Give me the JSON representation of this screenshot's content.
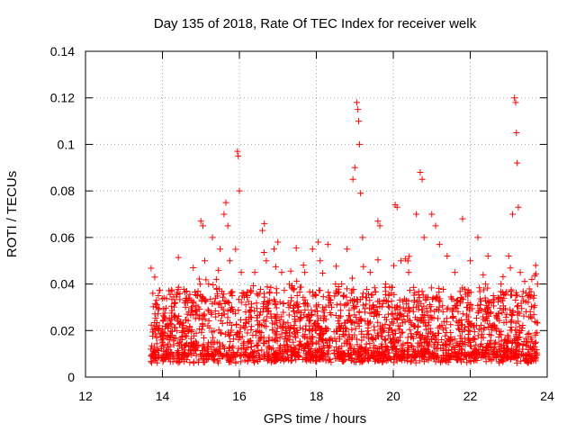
{
  "chart_data": {
    "type": "scatter",
    "title": "Day 135 of 2018, Rate Of TEC Index for receiver welk",
    "xlabel": "GPS time / hours",
    "ylabel": "ROTI / TECUs",
    "xlim": [
      12,
      24
    ],
    "ylim": [
      0,
      0.14
    ],
    "xticks": [
      12,
      14,
      16,
      18,
      20,
      22,
      24
    ],
    "yticks": [
      0,
      0.02,
      0.04,
      0.06,
      0.08,
      0.1,
      0.12,
      0.14
    ],
    "xtick_labels": [
      "12",
      "14",
      "16",
      "18",
      "20",
      "22",
      "24"
    ],
    "ytick_labels": [
      "0",
      "0.02",
      "0.04",
      "0.06",
      "0.08",
      "0.1",
      "0.12",
      "0.14"
    ],
    "grid": true,
    "marker": "+",
    "color": "#ff0000",
    "series": [
      {
        "name": "ROTI",
        "points": [
          [
            13.7,
            0.012
          ],
          [
            13.75,
            0.036
          ],
          [
            13.8,
            0.043
          ],
          [
            13.85,
            0.03
          ],
          [
            13.9,
            0.02
          ],
          [
            14.0,
            0.015
          ],
          [
            14.1,
            0.022
          ],
          [
            14.2,
            0.018
          ],
          [
            14.4,
            0.025
          ],
          [
            14.6,
            0.03
          ],
          [
            14.8,
            0.047
          ],
          [
            14.9,
            0.035
          ],
          [
            15.0,
            0.067
          ],
          [
            15.05,
            0.065
          ],
          [
            15.1,
            0.05
          ],
          [
            15.2,
            0.04
          ],
          [
            15.3,
            0.06
          ],
          [
            15.4,
            0.042
          ],
          [
            15.5,
            0.055
          ],
          [
            15.6,
            0.07
          ],
          [
            15.65,
            0.075
          ],
          [
            15.7,
            0.065
          ],
          [
            15.75,
            0.05
          ],
          [
            15.8,
            0.03
          ],
          [
            15.95,
            0.097
          ],
          [
            15.97,
            0.095
          ],
          [
            16.0,
            0.08
          ],
          [
            16.05,
            0.045
          ],
          [
            16.2,
            0.035
          ],
          [
            16.4,
            0.045
          ],
          [
            16.6,
            0.063
          ],
          [
            16.65,
            0.066
          ],
          [
            16.7,
            0.05
          ],
          [
            16.9,
            0.055
          ],
          [
            17.0,
            0.058
          ],
          [
            17.1,
            0.045
          ],
          [
            17.3,
            0.04
          ],
          [
            17.5,
            0.035
          ],
          [
            17.7,
            0.045
          ],
          [
            17.9,
            0.055
          ],
          [
            18.05,
            0.058
          ],
          [
            18.1,
            0.05
          ],
          [
            18.3,
            0.057
          ],
          [
            18.5,
            0.04
          ],
          [
            18.7,
            0.035
          ],
          [
            18.8,
            0.055
          ],
          [
            18.95,
            0.085
          ],
          [
            19.0,
            0.09
          ],
          [
            19.05,
            0.118
          ],
          [
            19.08,
            0.115
          ],
          [
            19.1,
            0.11
          ],
          [
            19.12,
            0.1
          ],
          [
            19.15,
            0.079
          ],
          [
            19.2,
            0.06
          ],
          [
            19.4,
            0.045
          ],
          [
            19.6,
            0.067
          ],
          [
            19.65,
            0.065
          ],
          [
            19.8,
            0.04
          ],
          [
            20.05,
            0.074
          ],
          [
            20.1,
            0.073
          ],
          [
            20.2,
            0.05
          ],
          [
            20.4,
            0.045
          ],
          [
            20.6,
            0.07
          ],
          [
            20.7,
            0.088
          ],
          [
            20.75,
            0.085
          ],
          [
            20.8,
            0.06
          ],
          [
            21.0,
            0.07
          ],
          [
            21.1,
            0.065
          ],
          [
            21.2,
            0.057
          ],
          [
            21.4,
            0.052
          ],
          [
            21.6,
            0.045
          ],
          [
            21.8,
            0.068
          ],
          [
            22.0,
            0.05
          ],
          [
            22.2,
            0.06
          ],
          [
            22.4,
            0.04
          ],
          [
            22.6,
            0.035
          ],
          [
            22.8,
            0.04
          ],
          [
            23.0,
            0.052
          ],
          [
            23.1,
            0.07
          ],
          [
            23.15,
            0.12
          ],
          [
            23.18,
            0.118
          ],
          [
            23.2,
            0.105
          ],
          [
            23.22,
            0.092
          ],
          [
            23.25,
            0.073
          ],
          [
            23.3,
            0.045
          ],
          [
            23.5,
            0.035
          ],
          [
            23.6,
            0.042
          ],
          [
            23.7,
            0.048
          ],
          [
            23.75,
            0.04
          ]
        ]
      }
    ]
  }
}
